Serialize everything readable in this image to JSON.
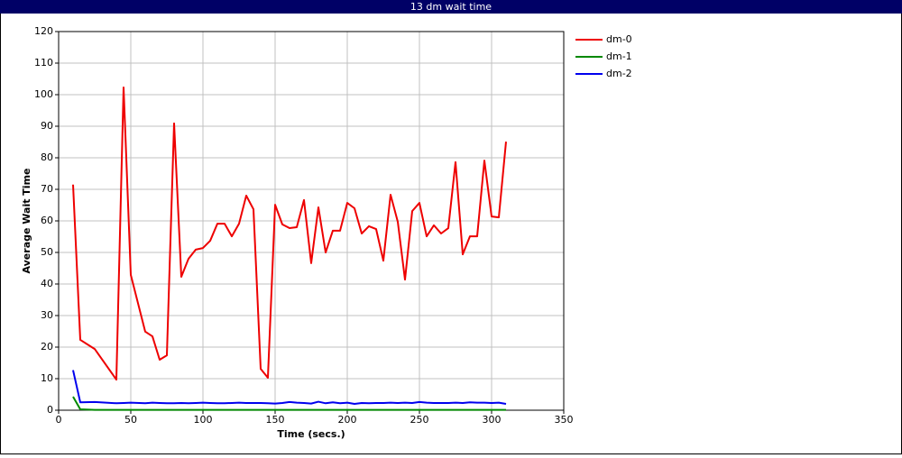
{
  "chart_data": {
    "type": "line",
    "title": "13 dm wait time",
    "xlabel": "Time (secs.)",
    "ylabel": "Average Wait Time",
    "x": [
      10,
      15,
      25,
      40,
      45,
      50,
      60,
      65,
      70,
      75,
      80,
      85,
      90,
      95,
      100,
      105,
      110,
      115,
      120,
      125,
      130,
      135,
      140,
      145,
      150,
      155,
      160,
      165,
      170,
      175,
      180,
      185,
      190,
      195,
      200,
      205,
      210,
      215,
      220,
      225,
      230,
      235,
      240,
      245,
      250,
      255,
      260,
      265,
      270,
      275,
      280,
      285,
      290,
      295,
      300,
      305,
      310
    ],
    "series": [
      {
        "name": "dm-0",
        "color": "#ee0000",
        "values": [
          71.5,
          22.3,
          19.4,
          9.7,
          102.3,
          42.9,
          24.9,
          23.4,
          16,
          17.4,
          90.9,
          42.3,
          48,
          50.9,
          51.4,
          53.7,
          59.1,
          59.1,
          55.1,
          59.1,
          68,
          63.7,
          13.1,
          10.3,
          65.1,
          58.9,
          57.7,
          58,
          66.6,
          46.6,
          64.3,
          50,
          56.9,
          56.9,
          65.7,
          64,
          56,
          58.3,
          57.4,
          47.4,
          68.3,
          59.7,
          41.4,
          63.1,
          65.7,
          55.1,
          58.6,
          56,
          57.7,
          78.6,
          49.4,
          55.1,
          55.1,
          79.1,
          61.4,
          61.1,
          85.1
        ]
      },
      {
        "name": "dm-1",
        "color": "#008800",
        "values": [
          4.3,
          0.3,
          0.1,
          0.1,
          0.1,
          0.1,
          0.1,
          0.1,
          0.1,
          0.1,
          0.1,
          0.1,
          0.1,
          0.1,
          0.1,
          0.1,
          0.1,
          0.1,
          0.1,
          0.1,
          0.1,
          0.1,
          0.1,
          0.1,
          0.1,
          0.1,
          0.1,
          0.1,
          0.1,
          0.1,
          0.1,
          0.1,
          0.1,
          0.1,
          0.1,
          0.1,
          0.1,
          0.1,
          0.1,
          0.1,
          0.1,
          0.1,
          0.1,
          0.1,
          0.1,
          0.1,
          0.1,
          0.1,
          0.1,
          0.1,
          0.1,
          0.1,
          0.1,
          0.1,
          0.1,
          0.1,
          0.1
        ]
      },
      {
        "name": "dm-2",
        "color": "#0000ee",
        "values": [
          12.7,
          2.5,
          2.6,
          2.2,
          2.3,
          2.4,
          2.2,
          2.4,
          2.3,
          2.2,
          2.2,
          2.3,
          2.2,
          2.3,
          2.4,
          2.3,
          2.2,
          2.2,
          2.3,
          2.4,
          2.3,
          2.3,
          2.3,
          2.2,
          2.1,
          2.3,
          2.6,
          2.4,
          2.3,
          2.1,
          2.7,
          2.2,
          2.5,
          2.2,
          2.4,
          2.0,
          2.3,
          2.2,
          2.3,
          2.3,
          2.4,
          2.3,
          2.4,
          2.3,
          2.6,
          2.4,
          2.3,
          2.3,
          2.3,
          2.4,
          2.3,
          2.5,
          2.4,
          2.4,
          2.3,
          2.4,
          2.0
        ]
      }
    ],
    "xlim": [
      0,
      350
    ],
    "xticks": [
      0,
      50,
      100,
      150,
      200,
      250,
      300,
      350
    ],
    "ylim": [
      0,
      120
    ],
    "yticks": [
      0,
      10,
      20,
      30,
      40,
      50,
      60,
      70,
      80,
      90,
      100,
      110,
      120
    ],
    "grid": true,
    "legend": "right"
  }
}
